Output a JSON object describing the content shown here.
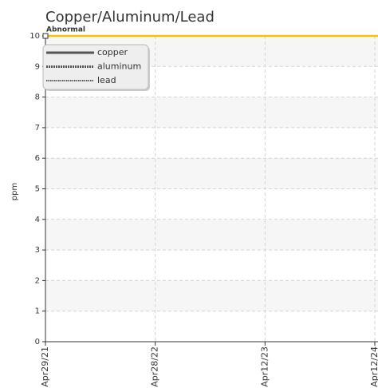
{
  "chart_data": {
    "type": "line",
    "title": "Copper/Aluminum/Lead",
    "y_label": "ppm",
    "categories": [
      "Apr29/21",
      "Apr28/22",
      "Apr12/23",
      "Apr12/24"
    ],
    "series": [
      {
        "name": "copper",
        "color": "#555555",
        "style": "solid",
        "values": [
          null,
          null,
          null,
          null
        ]
      },
      {
        "name": "aluminum",
        "color": "#555555",
        "style": "dotted-thick",
        "values": [
          null,
          null,
          null,
          null
        ]
      },
      {
        "name": "lead",
        "color": "#555555",
        "style": "dotted-thin",
        "values": [
          null,
          null,
          null,
          null
        ]
      }
    ],
    "threshold": {
      "label": "Abnormal",
      "value": 10,
      "color": "#f5c400"
    },
    "ylim": [
      0,
      10
    ],
    "yticks": [
      0,
      1,
      2,
      3,
      4,
      5,
      6,
      7,
      8,
      9,
      10
    ],
    "grid": true,
    "legend": "top-left"
  }
}
